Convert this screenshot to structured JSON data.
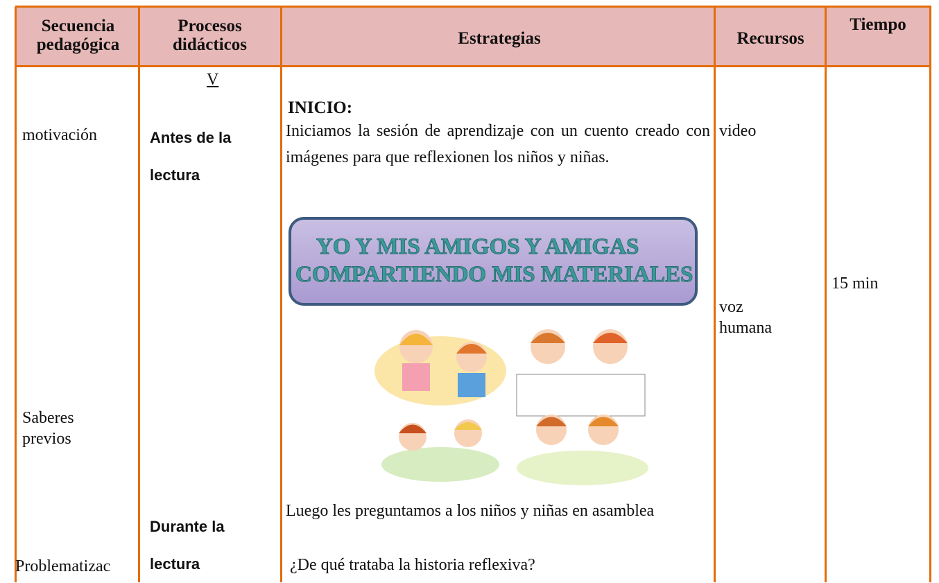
{
  "header": [
    "Secuencia pedagógica",
    "Procesos didácticos",
    "Estrategias",
    "Recursos",
    "Tiempo"
  ],
  "secuencia": [
    "motivación",
    "Saberes previos",
    "Problematizac"
  ],
  "procesos": {
    "mark": "V",
    "antes": "Antes de la lectura",
    "durante": "Durante la lectura"
  },
  "estrategias": {
    "heading": "INICIO:",
    "intro": "Iniciamos la sesión de aprendizaje con un cuento creado con imágenes para que reflexionen  los niños y niñas.",
    "banner": [
      "YO Y MIS AMIGOS Y AMIGAS",
      "COMPARTIENDO MIS MATERIALES"
    ],
    "question_intro": "Luego les preguntamos a los niños y niñas en asamblea",
    "question": "¿De qué trataba la historia reflexiva?"
  },
  "recursos": [
    "video",
    "voz humana"
  ],
  "tiempo": "15 min"
}
